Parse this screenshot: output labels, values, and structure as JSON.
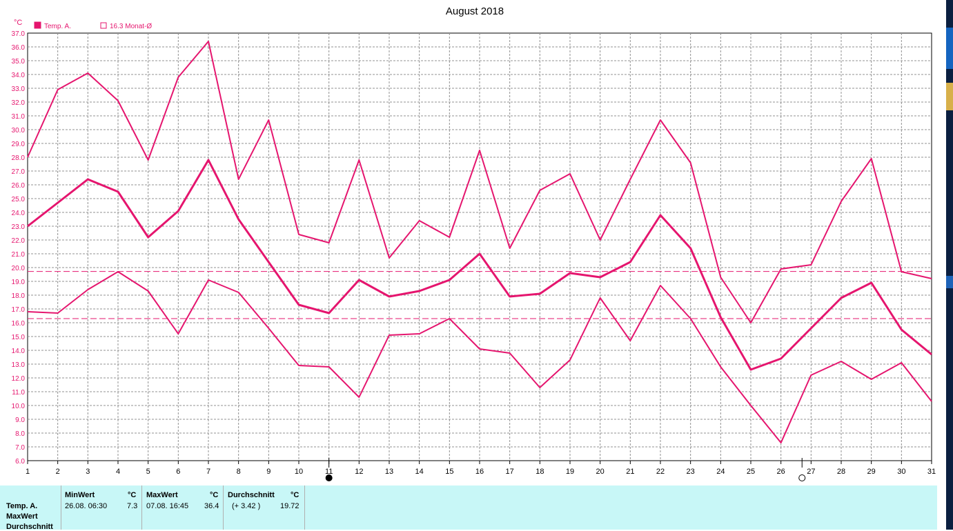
{
  "title": "August 2018",
  "unit_label": "°C",
  "legend": [
    {
      "label": "Temp. A.",
      "filled": true
    },
    {
      "label": "16.3 Monat-Ø",
      "filled": false
    }
  ],
  "colors": {
    "line": "#e5156e",
    "grid": "#909090",
    "footer_bg": "#c8f7f7"
  },
  "chart_data": {
    "type": "line",
    "x": [
      1,
      2,
      3,
      4,
      5,
      6,
      7,
      8,
      9,
      10,
      11,
      12,
      13,
      14,
      15,
      16,
      17,
      18,
      19,
      20,
      21,
      22,
      23,
      24,
      25,
      26,
      27,
      28,
      29,
      30,
      31
    ],
    "ylim": [
      6.0,
      37.0
    ],
    "y_ticks": [
      "6.0",
      "7.0",
      "8.0",
      "9.0",
      "10.0",
      "11.0",
      "12.0",
      "13.0",
      "14.0",
      "15.0",
      "16.0",
      "17.0",
      "18.0",
      "19.0",
      "20.0",
      "21.0",
      "22.0",
      "23.0",
      "24.0",
      "25.0",
      "26.0",
      "27.0",
      "28.0",
      "29.0",
      "30.0",
      "31.0",
      "32.0",
      "33.0",
      "34.0",
      "35.0",
      "36.0",
      "37.0"
    ],
    "x_ticks": [
      "1",
      "2",
      "3",
      "4",
      "5",
      "6",
      "7",
      "8",
      "9",
      "10",
      "11",
      "12",
      "13",
      "14",
      "15",
      "16",
      "17",
      "18",
      "19",
      "20",
      "21",
      "22",
      "23",
      "24",
      "25",
      "26",
      "27",
      "28",
      "29",
      "30",
      "31"
    ],
    "grid": true,
    "series": [
      {
        "role": "max",
        "values": [
          28.0,
          32.9,
          34.1,
          32.1,
          27.8,
          33.8,
          36.4,
          26.4,
          30.7,
          22.4,
          21.8,
          27.8,
          20.7,
          23.4,
          22.2,
          28.5,
          21.4,
          25.6,
          26.8,
          22.0,
          26.4,
          30.7,
          27.6,
          19.3,
          16.0,
          19.9,
          20.2,
          24.8,
          27.9,
          19.7,
          19.2
        ]
      },
      {
        "role": "mean",
        "values": [
          23.0,
          24.7,
          26.4,
          25.5,
          22.2,
          24.1,
          27.8,
          23.5,
          20.4,
          17.3,
          16.7,
          19.1,
          17.9,
          18.3,
          19.1,
          21.0,
          17.9,
          18.1,
          19.6,
          19.3,
          20.4,
          23.8,
          21.4,
          16.4,
          12.6,
          13.4,
          15.6,
          17.8,
          18.9,
          15.5,
          13.7
        ]
      },
      {
        "role": "min",
        "values": [
          16.8,
          16.7,
          18.4,
          19.7,
          18.3,
          15.2,
          19.1,
          18.2,
          15.6,
          12.9,
          12.8,
          10.6,
          15.1,
          15.2,
          16.3,
          14.1,
          13.8,
          11.3,
          13.3,
          17.8,
          14.7,
          18.7,
          16.3,
          12.8,
          10.0,
          7.3,
          12.2,
          13.2,
          11.9,
          13.1,
          10.3
        ]
      }
    ],
    "reference_lines": [
      19.72,
      16.3
    ],
    "moon_phases": [
      {
        "phase": "full",
        "day": 11.0
      },
      {
        "phase": "new",
        "day": 26.7
      }
    ]
  },
  "footer": {
    "rows": [
      "Temp. A.",
      "MaxWert",
      "Durchschnitt"
    ],
    "min": {
      "head": "MinWert",
      "unit": "°C",
      "when": "26.08.  06:30",
      "value": "7.3"
    },
    "max": {
      "head": "MaxWert",
      "unit": "°C",
      "when": "07.08.  16:45",
      "value": "36.4"
    },
    "avg": {
      "head": "Durchschnitt",
      "unit": "°C",
      "delta": "(+ 3.42 )",
      "value": "19.72"
    }
  }
}
